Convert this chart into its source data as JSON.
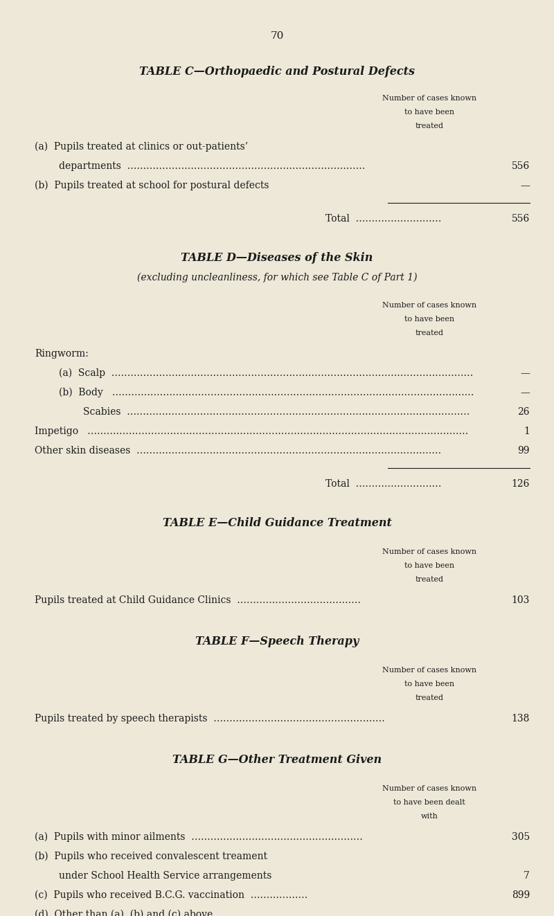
{
  "bg_color": "#ede8d8",
  "text_color": "#1a1a1a",
  "page_number": "70",
  "fig_width": 8.0,
  "fig_height": 13.23,
  "sections": [
    {
      "id": "C",
      "title": "TABLE C—Orthopaedic and Postural Defects",
      "header": [
        "Number of cases known",
        "to have been",
        "treated"
      ]
    },
    {
      "id": "D",
      "title": "TABLE D—Diseases of the Skin",
      "subtitle": "(excluding uncleanliness, for which see Table C of Part 1)",
      "header": [
        "Number of cases known",
        "to have been",
        "treated"
      ]
    },
    {
      "id": "E",
      "title": "TABLE E—Child Guidance Treatment",
      "header": [
        "Number of cases known",
        "to have been",
        "treated"
      ]
    },
    {
      "id": "F",
      "title": "TABLE F—Speech Therapy",
      "header": [
        "Number of cases known",
        "to have been",
        "treated"
      ]
    },
    {
      "id": "G",
      "title": "TABLE G—Other Treatment Given",
      "header": [
        "Number of cases known",
        "to have been dealt",
        "with"
      ]
    }
  ]
}
